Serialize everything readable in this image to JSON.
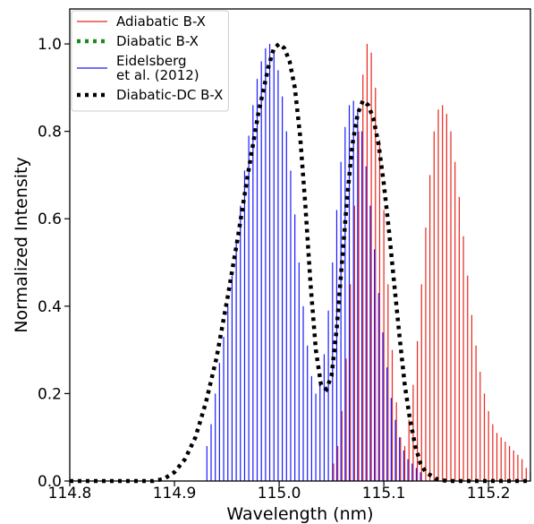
{
  "chart_data": {
    "type": "line",
    "xlabel": "Wavelength (nm)",
    "ylabel": "Normalized Intensity",
    "xlim": [
      114.8,
      115.24
    ],
    "ylim": [
      0.0,
      1.08
    ],
    "x_ticks": [
      "114.8",
      "114.9",
      "115.0",
      "115.1",
      "115.2"
    ],
    "x_tick_values": [
      114.8,
      114.9,
      115.0,
      115.1,
      115.2
    ],
    "y_ticks": [
      "0.0",
      "0.2",
      "0.4",
      "0.6",
      "0.8",
      "1.0"
    ],
    "y_tick_values": [
      0.0,
      0.2,
      0.4,
      0.6,
      0.8,
      1.0
    ],
    "grid": false,
    "legend_position": "top-left",
    "series": [
      {
        "name": "Adiabatic B-X",
        "style": "stick",
        "color": "#e8261c",
        "x": [
          115.052,
          115.056,
          115.06,
          115.064,
          115.068,
          115.072,
          115.076,
          115.08,
          115.084,
          115.088,
          115.092,
          115.096,
          115.1,
          115.104,
          115.108,
          115.112,
          115.116,
          115.12,
          115.124,
          115.128,
          115.132,
          115.136,
          115.14,
          115.144,
          115.148,
          115.152,
          115.156,
          115.16,
          115.164,
          115.168,
          115.172,
          115.176,
          115.18,
          115.184,
          115.188,
          115.192,
          115.196,
          115.2,
          115.204,
          115.208,
          115.212,
          115.216,
          115.22,
          115.224,
          115.228,
          115.232,
          115.236,
          115.24
        ],
        "y": [
          0.04,
          0.08,
          0.16,
          0.28,
          0.45,
          0.63,
          0.8,
          0.93,
          1.0,
          0.98,
          0.9,
          0.78,
          0.62,
          0.45,
          0.3,
          0.18,
          0.1,
          0.08,
          0.14,
          0.22,
          0.32,
          0.45,
          0.58,
          0.7,
          0.8,
          0.85,
          0.86,
          0.84,
          0.8,
          0.73,
          0.65,
          0.56,
          0.47,
          0.38,
          0.31,
          0.25,
          0.2,
          0.16,
          0.13,
          0.11,
          0.1,
          0.09,
          0.08,
          0.07,
          0.06,
          0.05,
          0.03,
          0.02
        ]
      },
      {
        "name": "Diabatic B-X",
        "style": "dotted",
        "color": "#1a8a1a",
        "x": [],
        "y": []
      },
      {
        "name": "Eidelsberg\net al. (2012)",
        "legend_lines": [
          "Eidelsberg",
          "et al. (2012)"
        ],
        "style": "stick",
        "color": "#1a1aff",
        "x": [
          114.931,
          114.935,
          114.939,
          114.943,
          114.947,
          114.951,
          114.955,
          114.959,
          114.963,
          114.967,
          114.971,
          114.975,
          114.979,
          114.983,
          114.987,
          114.991,
          114.995,
          114.999,
          115.003,
          115.007,
          115.011,
          115.015,
          115.019,
          115.023,
          115.027,
          115.031,
          115.035,
          115.039,
          115.043,
          115.047,
          115.051,
          115.055,
          115.059,
          115.063,
          115.067,
          115.071,
          115.075,
          115.079,
          115.083,
          115.087,
          115.091,
          115.095,
          115.099,
          115.103,
          115.107,
          115.111,
          115.115,
          115.119,
          115.123,
          115.127,
          115.131,
          115.135
        ],
        "y": [
          0.08,
          0.13,
          0.2,
          0.27,
          0.33,
          0.4,
          0.47,
          0.55,
          0.63,
          0.71,
          0.79,
          0.86,
          0.92,
          0.96,
          0.99,
          1.0,
          0.98,
          0.94,
          0.88,
          0.8,
          0.71,
          0.61,
          0.5,
          0.4,
          0.31,
          0.24,
          0.2,
          0.22,
          0.29,
          0.39,
          0.5,
          0.62,
          0.73,
          0.81,
          0.86,
          0.87,
          0.85,
          0.8,
          0.72,
          0.63,
          0.53,
          0.43,
          0.34,
          0.26,
          0.19,
          0.14,
          0.1,
          0.07,
          0.05,
          0.04,
          0.03,
          0.02
        ]
      },
      {
        "name": "Diabatic-DC B-X",
        "style": "dotted-thick",
        "color": "#000000",
        "x": [
          114.8,
          114.84,
          114.86,
          114.88,
          114.89,
          114.9,
          114.91,
          114.92,
          114.93,
          114.94,
          114.95,
          114.96,
          114.97,
          114.98,
          114.99,
          114.995,
          115.0,
          115.005,
          115.01,
          115.015,
          115.02,
          115.025,
          115.03,
          115.035,
          115.04,
          115.045,
          115.05,
          115.055,
          115.06,
          115.065,
          115.07,
          115.075,
          115.08,
          115.085,
          115.09,
          115.095,
          115.1,
          115.105,
          115.11,
          115.115,
          115.12,
          115.125,
          115.13,
          115.135,
          115.14,
          115.15,
          115.16,
          115.18,
          115.24
        ],
        "y": [
          0.0,
          0.0,
          0.0,
          0.0,
          0.005,
          0.02,
          0.05,
          0.1,
          0.18,
          0.28,
          0.41,
          0.55,
          0.7,
          0.84,
          0.95,
          0.99,
          1.0,
          0.99,
          0.96,
          0.9,
          0.79,
          0.63,
          0.45,
          0.3,
          0.22,
          0.21,
          0.24,
          0.35,
          0.5,
          0.65,
          0.77,
          0.84,
          0.87,
          0.86,
          0.83,
          0.77,
          0.68,
          0.57,
          0.45,
          0.33,
          0.22,
          0.14,
          0.08,
          0.04,
          0.02,
          0.005,
          0.0,
          0.0,
          0.0
        ]
      }
    ]
  }
}
